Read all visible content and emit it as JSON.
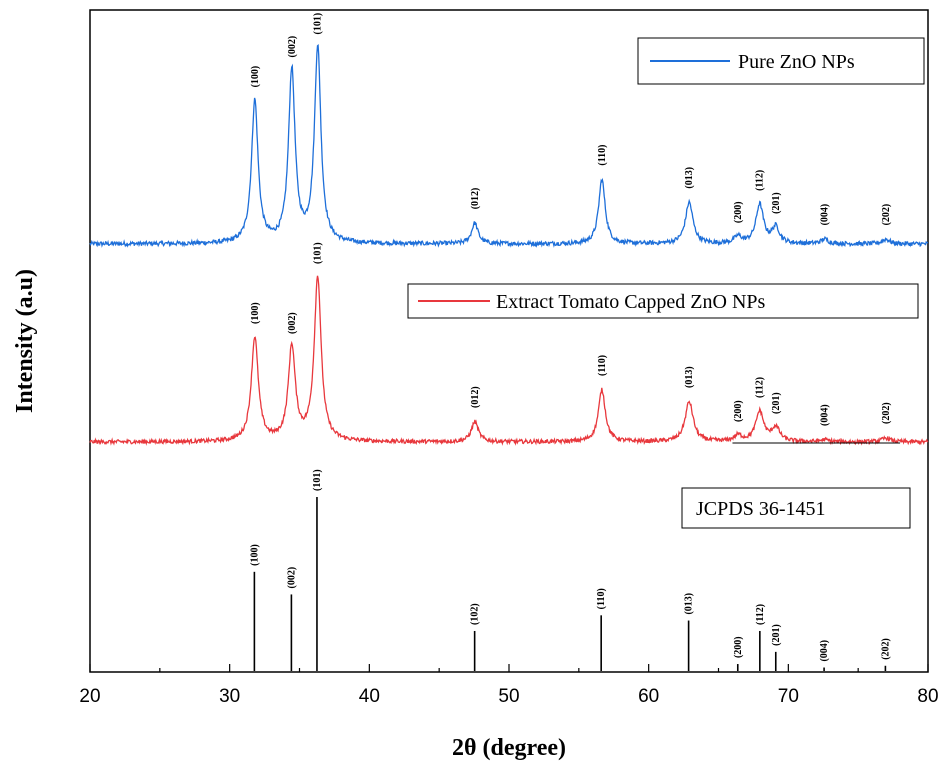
{
  "chart_data": {
    "type": "line",
    "xlabel": "2θ (degree)",
    "ylabel": "Intensity (a.u)",
    "xlim": [
      20,
      80
    ],
    "x_ticks": [
      20,
      30,
      40,
      50,
      60,
      70,
      80
    ],
    "grid": false,
    "series": [
      {
        "name": "Pure ZnO NPs",
        "color": "#1e6fd9",
        "baseline": 0.0,
        "peaks": [
          {
            "x": 31.8,
            "height": 0.62,
            "label": "(100)"
          },
          {
            "x": 34.45,
            "height": 0.75,
            "label": "(002)"
          },
          {
            "x": 36.3,
            "height": 0.85,
            "label": "(101)"
          },
          {
            "x": 47.55,
            "height": 0.09,
            "label": "(012)"
          },
          {
            "x": 56.65,
            "height": 0.28,
            "label": "(110)"
          },
          {
            "x": 62.9,
            "height": 0.18,
            "label": "(013)"
          },
          {
            "x": 66.4,
            "height": 0.03,
            "label": "(200)"
          },
          {
            "x": 67.95,
            "height": 0.17,
            "label": "(112)"
          },
          {
            "x": 69.1,
            "height": 0.07,
            "label": "(201)"
          },
          {
            "x": 72.6,
            "height": 0.02,
            "label": "(004)"
          },
          {
            "x": 77.0,
            "height": 0.02,
            "label": "(202)"
          }
        ]
      },
      {
        "name": "Extract Tomato Capped ZnO NPs",
        "color": "#e8383d",
        "baseline": 0.0,
        "peaks": [
          {
            "x": 31.8,
            "height": 0.52,
            "label": "(100)"
          },
          {
            "x": 34.45,
            "height": 0.47,
            "label": "(002)"
          },
          {
            "x": 36.3,
            "height": 0.82,
            "label": "(101)"
          },
          {
            "x": 47.55,
            "height": 0.1,
            "label": "(012)"
          },
          {
            "x": 56.65,
            "height": 0.26,
            "label": "(110)"
          },
          {
            "x": 62.9,
            "height": 0.2,
            "label": "(013)"
          },
          {
            "x": 66.4,
            "height": 0.03,
            "label": "(200)"
          },
          {
            "x": 67.95,
            "height": 0.15,
            "label": "(112)"
          },
          {
            "x": 69.1,
            "height": 0.07,
            "label": "(201)"
          },
          {
            "x": 72.6,
            "height": 0.01,
            "label": "(004)"
          },
          {
            "x": 77.0,
            "height": 0.02,
            "label": "(202)"
          }
        ]
      },
      {
        "name": "JCPDS 36-1451",
        "color": "#000000",
        "type": "stick",
        "peaks": [
          {
            "x": 31.77,
            "height": 0.57,
            "label": "(100)"
          },
          {
            "x": 34.42,
            "height": 0.44,
            "label": "(002)"
          },
          {
            "x": 36.25,
            "height": 1.0,
            "label": "(101)"
          },
          {
            "x": 47.54,
            "height": 0.23,
            "label": "(102)"
          },
          {
            "x": 56.6,
            "height": 0.32,
            "label": "(110)"
          },
          {
            "x": 62.86,
            "height": 0.29,
            "label": "(013)"
          },
          {
            "x": 66.38,
            "height": 0.04,
            "label": "(200)"
          },
          {
            "x": 67.96,
            "height": 0.23,
            "label": "(112)"
          },
          {
            "x": 69.1,
            "height": 0.11,
            "label": "(201)"
          },
          {
            "x": 72.56,
            "height": 0.02,
            "label": "(004)"
          },
          {
            "x": 76.95,
            "height": 0.03,
            "label": "(202)"
          }
        ]
      }
    ],
    "legend": [
      "Pure ZnO NPs",
      "Extract Tomato Capped ZnO NPs",
      "JCPDS 36-1451"
    ]
  }
}
